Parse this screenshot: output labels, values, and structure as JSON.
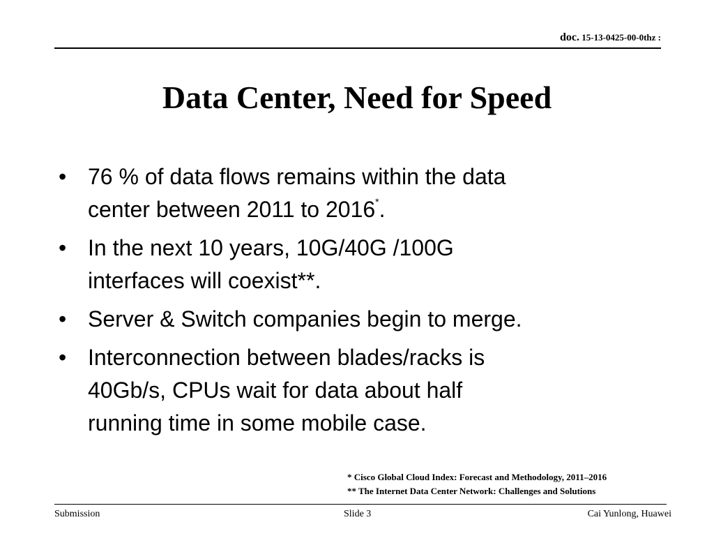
{
  "header": {
    "doc_prefix": "doc.",
    "doc_number": " 15-13-0425-00-0thz :"
  },
  "title": "Data Center, Need for Speed",
  "bullets": [
    {
      "lines": [
        "76 % of data flows remains within the data",
        "center between 2011 to 2016"
      ],
      "sup": "*",
      "after": "."
    },
    {
      "lines": [
        "In the next 10 years, 10G/40G /100G",
        "interfaces will coexist**."
      ]
    },
    {
      "lines": [
        "Server & Switch companies begin to merge."
      ]
    },
    {
      "lines": [
        "Interconnection between blades/racks is",
        "40Gb/s, CPUs wait for data about half",
        "running time in some mobile case."
      ]
    }
  ],
  "bullet_symbol": "•",
  "footnotes": [
    "* Cisco Global Cloud Index: Forecast and Methodology, 2011–2016",
    "** The Internet Data Center Network: Challenges and Solutions"
  ],
  "footer": {
    "left": "Submission",
    "center": "Slide 3",
    "right": "Cai Yunlong, Huawei"
  }
}
